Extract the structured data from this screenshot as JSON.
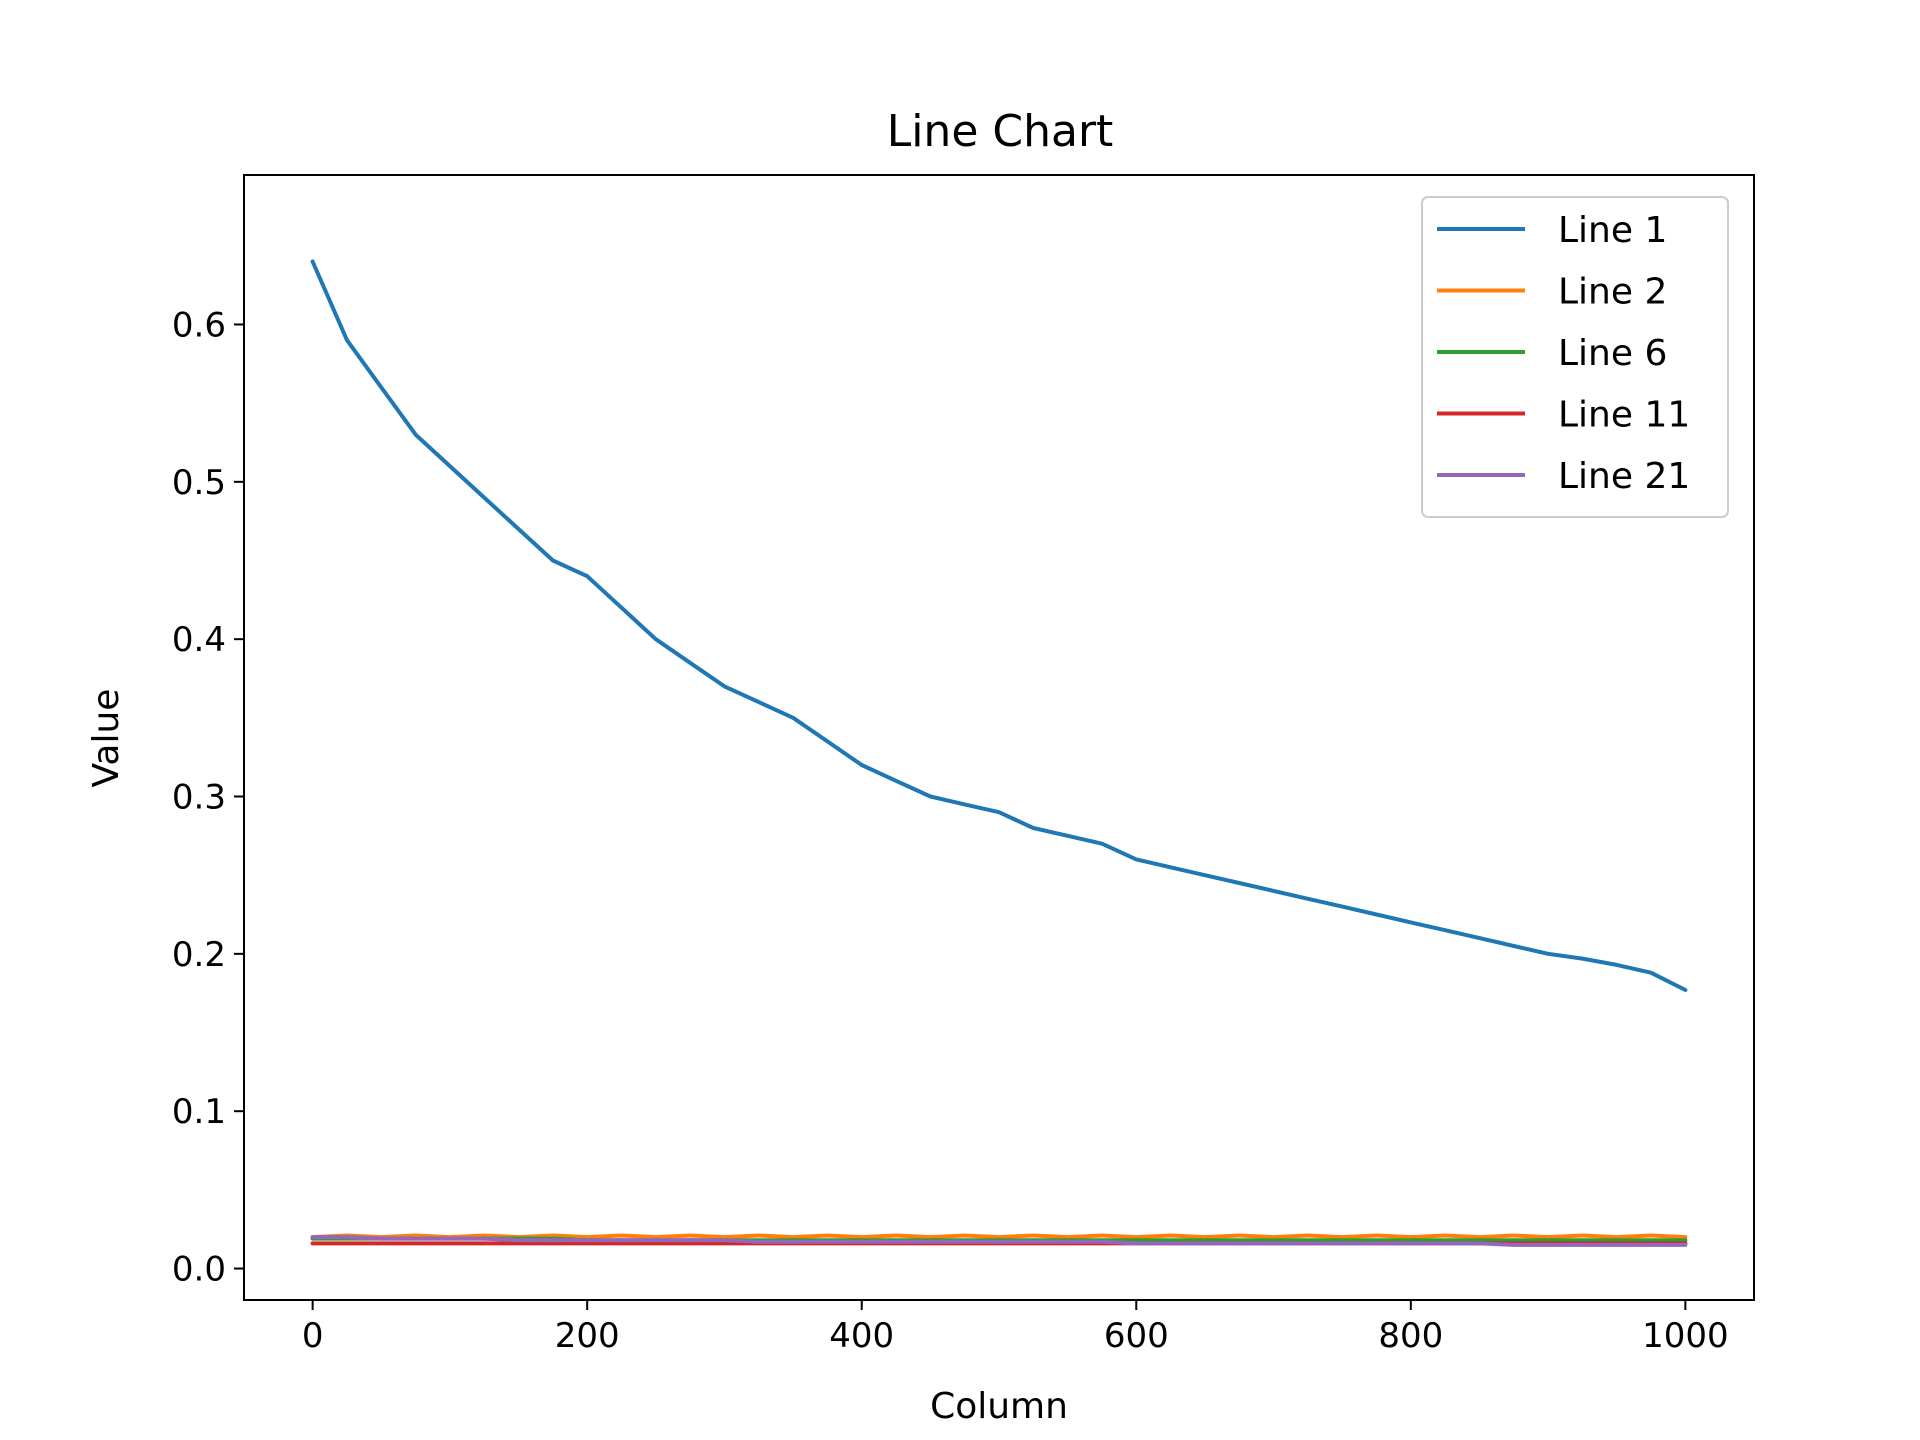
{
  "chart_data": {
    "type": "line",
    "title": "Line Chart",
    "xlabel": "Column",
    "ylabel": "Value",
    "xlim": [
      -50,
      1050
    ],
    "ylim": [
      -0.02,
      0.695
    ],
    "xticks": [
      0,
      200,
      400,
      600,
      800,
      1000
    ],
    "xtick_labels": [
      "0",
      "200",
      "400",
      "600",
      "800",
      "1000"
    ],
    "yticks": [
      0.0,
      0.1,
      0.2,
      0.3,
      0.4,
      0.5,
      0.6
    ],
    "ytick_labels": [
      "0.0",
      "0.1",
      "0.2",
      "0.3",
      "0.4",
      "0.5",
      "0.6"
    ],
    "grid": false,
    "legend_position": "top-right",
    "x": [
      0,
      25,
      50,
      75,
      100,
      125,
      150,
      175,
      200,
      225,
      250,
      275,
      300,
      325,
      350,
      375,
      400,
      425,
      450,
      475,
      500,
      525,
      550,
      575,
      600,
      625,
      650,
      675,
      700,
      725,
      750,
      775,
      800,
      825,
      850,
      875,
      900,
      925,
      950,
      975,
      1000
    ],
    "series": [
      {
        "name": "Line 1",
        "color": "#1f77b4",
        "values": [
          0.64,
          0.59,
          0.56,
          0.53,
          0.51,
          0.49,
          0.47,
          0.45,
          0.44,
          0.42,
          0.4,
          0.385,
          0.37,
          0.36,
          0.35,
          0.335,
          0.32,
          0.31,
          0.3,
          0.295,
          0.29,
          0.28,
          0.275,
          0.27,
          0.26,
          0.255,
          0.25,
          0.245,
          0.24,
          0.235,
          0.23,
          0.225,
          0.22,
          0.215,
          0.21,
          0.205,
          0.2,
          0.197,
          0.193,
          0.188,
          0.177
        ]
      },
      {
        "name": "Line 2",
        "color": "#ff7f0e",
        "values": [
          0.02,
          0.021,
          0.02,
          0.021,
          0.02,
          0.021,
          0.02,
          0.021,
          0.02,
          0.021,
          0.02,
          0.021,
          0.02,
          0.021,
          0.02,
          0.021,
          0.02,
          0.021,
          0.02,
          0.021,
          0.02,
          0.021,
          0.02,
          0.021,
          0.02,
          0.021,
          0.02,
          0.021,
          0.02,
          0.021,
          0.02,
          0.021,
          0.02,
          0.021,
          0.02,
          0.021,
          0.02,
          0.021,
          0.02,
          0.021,
          0.02
        ]
      },
      {
        "name": "Line 6",
        "color": "#2ca02c",
        "values": [
          0.019,
          0.019,
          0.019,
          0.019,
          0.019,
          0.019,
          0.019,
          0.019,
          0.018,
          0.018,
          0.018,
          0.018,
          0.018,
          0.018,
          0.018,
          0.018,
          0.018,
          0.018,
          0.018,
          0.018,
          0.018,
          0.018,
          0.018,
          0.018,
          0.018,
          0.018,
          0.018,
          0.018,
          0.018,
          0.018,
          0.018,
          0.018,
          0.018,
          0.018,
          0.018,
          0.018,
          0.018,
          0.018,
          0.018,
          0.018,
          0.018
        ]
      },
      {
        "name": "Line 11",
        "color": "#d62728",
        "values": [
          0.016,
          0.016,
          0.016,
          0.016,
          0.016,
          0.016,
          0.016,
          0.016,
          0.016,
          0.016,
          0.016,
          0.016,
          0.016,
          0.016,
          0.016,
          0.016,
          0.016,
          0.016,
          0.016,
          0.016,
          0.016,
          0.016,
          0.016,
          0.016,
          0.016,
          0.016,
          0.016,
          0.016,
          0.016,
          0.016,
          0.016,
          0.016,
          0.016,
          0.016,
          0.016,
          0.016,
          0.016,
          0.016,
          0.016,
          0.016,
          0.016
        ]
      },
      {
        "name": "Line 21",
        "color": "#9467bd",
        "values": [
          0.02,
          0.02,
          0.019,
          0.019,
          0.019,
          0.019,
          0.018,
          0.018,
          0.018,
          0.018,
          0.018,
          0.018,
          0.018,
          0.017,
          0.017,
          0.017,
          0.017,
          0.017,
          0.017,
          0.017,
          0.017,
          0.017,
          0.017,
          0.017,
          0.016,
          0.016,
          0.016,
          0.016,
          0.016,
          0.016,
          0.016,
          0.016,
          0.016,
          0.016,
          0.016,
          0.015,
          0.015,
          0.015,
          0.015,
          0.015,
          0.015
        ]
      }
    ]
  }
}
